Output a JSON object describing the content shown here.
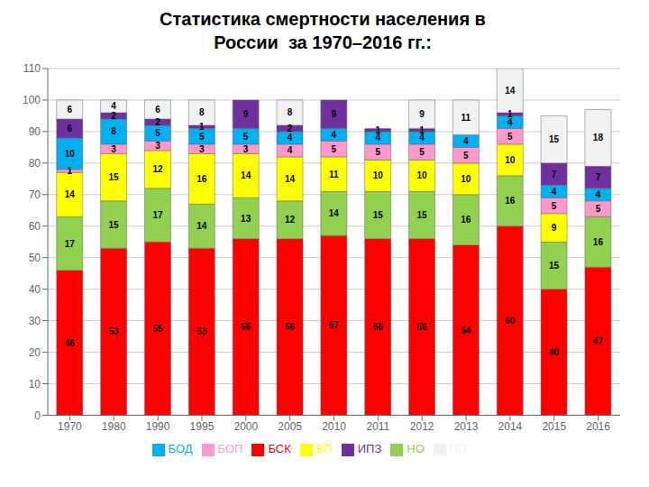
{
  "chart_data": {
    "type": "bar",
    "title": "Статистика смертности населения в\nРоссии  за 1970–2016 гг.:",
    "categories": [
      "1970",
      "1980",
      "1990",
      "1995",
      "2000",
      "2005",
      "2010",
      "2011",
      "2012",
      "2013",
      "2014",
      "2015",
      "2016"
    ],
    "series": [
      {
        "name": "БСК",
        "color": "#FF0000",
        "values": [
          46,
          53,
          55,
          53,
          56,
          56,
          57,
          56,
          56,
          54,
          60,
          40,
          47
        ]
      },
      {
        "name": "НО",
        "color": "#92D050",
        "values": [
          17,
          15,
          17,
          14,
          13,
          12,
          14,
          15,
          15,
          16,
          16,
          15,
          16
        ]
      },
      {
        "name": "ВП",
        "color": "#FFFF00",
        "values": [
          14,
          15,
          12,
          16,
          14,
          14,
          11,
          10,
          10,
          10,
          10,
          9,
          0
        ]
      },
      {
        "name": "БОП",
        "color": "#FF99CC",
        "values": [
          1,
          3,
          3,
          3,
          3,
          4,
          5,
          5,
          5,
          5,
          5,
          5,
          5
        ]
      },
      {
        "name": "БОД",
        "color": "#00B0F0",
        "values": [
          10,
          8,
          5,
          5,
          5,
          4,
          4,
          4,
          4,
          4,
          4,
          4,
          4
        ]
      },
      {
        "name": "ИПЗ",
        "color": "#7030A0",
        "values": [
          6,
          2,
          2,
          1,
          9,
          2,
          9,
          1,
          1,
          0,
          1,
          7,
          7
        ]
      },
      {
        "name": "ПП",
        "color": "#F2F2F2",
        "values": [
          6,
          4,
          6,
          8,
          0,
          8,
          0,
          0,
          9,
          11,
          14,
          15,
          18
        ]
      }
    ],
    "stacked": true,
    "data_labels": true,
    "ylim": [
      0,
      110
    ],
    "yticks": [
      0,
      10,
      20,
      30,
      40,
      50,
      60,
      70,
      80,
      90,
      100,
      110
    ],
    "grid": true,
    "legend": "bottom"
  }
}
